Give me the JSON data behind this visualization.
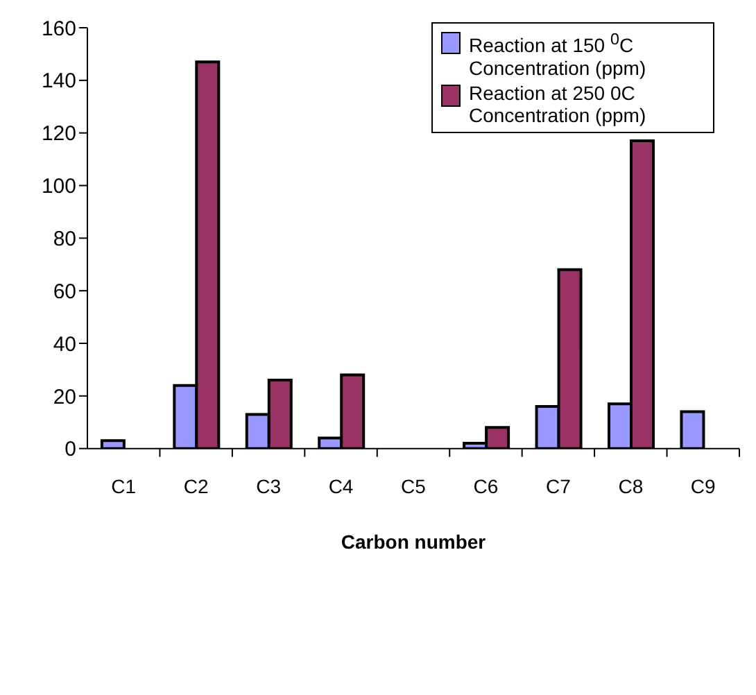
{
  "chart_data": {
    "type": "bar",
    "xlabel": "Carbon number",
    "categories": [
      "C1",
      "C2",
      "C3",
      "C4",
      "C5",
      "C6",
      "C7",
      "C8",
      "C9"
    ],
    "series": [
      {
        "name": "Reaction at 150 $^{0}$C Concentration (ppm)",
        "color": "#9999ff",
        "values": [
          3,
          24,
          13,
          4,
          null,
          2,
          16,
          17,
          14
        ]
      },
      {
        "name": "Reaction at 250 0C Concentration (ppm)",
        "color": "#993366",
        "values": [
          null,
          147,
          26,
          28,
          null,
          8,
          68,
          117,
          null
        ]
      }
    ],
    "ylim": [
      0,
      160
    ],
    "yticks": [
      0,
      20,
      40,
      60,
      80,
      100,
      120,
      140,
      160
    ],
    "grid": false,
    "legend": "top right"
  }
}
